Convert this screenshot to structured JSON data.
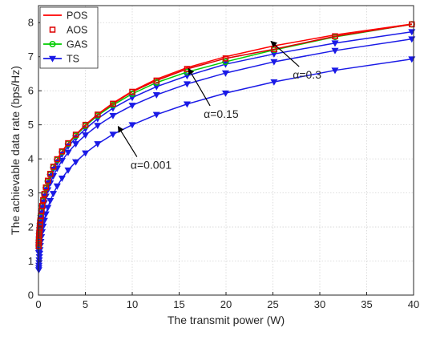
{
  "chart_data": {
    "type": "line",
    "xlabel": "The transmit power (W)",
    "ylabel": "The achievable data rate (bps/Hz)",
    "xlim": [
      0,
      40
    ],
    "ylim": [
      0,
      8.5
    ],
    "xticks": [
      0,
      5,
      10,
      15,
      20,
      25,
      30,
      35,
      40
    ],
    "yticks": [
      0,
      1,
      2,
      3,
      4,
      5,
      6,
      7,
      8
    ],
    "grid": true,
    "legend_position": "top-left",
    "x": [
      0.0316,
      0.0398,
      0.0501,
      0.0631,
      0.0794,
      0.1,
      0.1259,
      0.1585,
      0.1995,
      0.2512,
      0.3162,
      0.3981,
      0.5012,
      0.631,
      0.7943,
      1.0,
      1.2589,
      1.5849,
      1.9953,
      2.5119,
      3.1623,
      3.9811,
      5.0119,
      6.3096,
      7.9433,
      10.0,
      12.5893,
      15.8489,
      19.9526,
      25.1189,
      31.6228,
      39.8107
    ],
    "series": [
      {
        "name": "POS",
        "color": "#ff0000",
        "marker": "none",
        "values": [
          1.44,
          1.52,
          1.6,
          1.68,
          1.77,
          1.86,
          1.96,
          2.07,
          2.19,
          2.32,
          2.47,
          2.62,
          2.79,
          2.97,
          3.16,
          3.36,
          3.56,
          3.77,
          3.99,
          4.22,
          4.46,
          4.71,
          5.0,
          5.31,
          5.64,
          5.99,
          6.34,
          6.68,
          7.0,
          7.32,
          7.64,
          7.96
        ]
      },
      {
        "name": "AOS",
        "color": "#dd0000",
        "marker": "square",
        "values": [
          1.44,
          1.52,
          1.6,
          1.68,
          1.77,
          1.86,
          1.96,
          2.07,
          2.19,
          2.32,
          2.47,
          2.62,
          2.79,
          2.97,
          3.16,
          3.36,
          3.56,
          3.77,
          3.99,
          4.22,
          4.46,
          4.71,
          5.0,
          5.3,
          5.62,
          5.97,
          6.3,
          6.64,
          6.95,
          7.22,
          7.6,
          7.95
        ]
      },
      {
        "name": "GAS",
        "color": "#00cc00",
        "marker": "circle",
        "values": [
          1.43,
          1.51,
          1.59,
          1.67,
          1.76,
          1.85,
          1.95,
          2.06,
          2.18,
          2.31,
          2.45,
          2.61,
          2.77,
          2.95,
          3.14,
          3.34,
          3.54,
          3.75,
          3.97,
          4.2,
          4.44,
          4.68,
          4.97,
          5.27,
          5.58,
          5.91,
          6.24,
          6.55,
          6.85,
          7.2,
          7.58,
          7.95
        ]
      },
      {
        "name": "TS",
        "color": "#1a1ae6",
        "marker": "triangle-down",
        "values": [
          1.4,
          1.47,
          1.55,
          1.64,
          1.73,
          1.82,
          1.92,
          2.03,
          2.14,
          2.27,
          2.41,
          2.57,
          2.73,
          2.9,
          3.09,
          3.28,
          3.48,
          3.69,
          3.9,
          4.13,
          4.37,
          4.61,
          4.88,
          5.18,
          5.49,
          5.8,
          6.12,
          6.44,
          6.78,
          7.08,
          7.4,
          7.73
        ]
      }
    ],
    "extra_curves": [
      {
        "label": "α=0.15",
        "color": "#1a1ae6",
        "marker": "triangle-down",
        "values": [
          1.24,
          1.31,
          1.39,
          1.47,
          1.56,
          1.65,
          1.75,
          1.86,
          1.97,
          2.09,
          2.23,
          2.38,
          2.54,
          2.71,
          2.9,
          3.09,
          3.29,
          3.5,
          3.72,
          3.95,
          4.19,
          4.44,
          4.7,
          4.98,
          5.27,
          5.57,
          5.88,
          6.2,
          6.52,
          6.85,
          7.18,
          7.52
        ]
      },
      {
        "label": "α=0.001",
        "color": "#1a1ae6",
        "marker": "triangle-down",
        "values": [
          0.74,
          0.8,
          0.87,
          0.95,
          1.03,
          1.12,
          1.22,
          1.33,
          1.45,
          1.57,
          1.71,
          1.86,
          2.02,
          2.19,
          2.38,
          2.57,
          2.77,
          2.98,
          3.2,
          3.43,
          3.67,
          3.91,
          4.17,
          4.44,
          4.72,
          5.0,
          5.3,
          5.61,
          5.93,
          6.26,
          6.6,
          6.93
        ]
      }
    ],
    "annotations": [
      {
        "text": "α=0.3",
        "x": 27.8,
        "y": 6.45,
        "arrow_to": [
          24.8,
          7.45
        ]
      },
      {
        "text": "α=0.15",
        "x": 18.3,
        "y": 5.3,
        "arrow_to": [
          16.0,
          6.65
        ]
      },
      {
        "text": "α=0.001",
        "x": 10.5,
        "y": 3.8,
        "arrow_to": [
          8.5,
          4.95
        ]
      }
    ]
  }
}
